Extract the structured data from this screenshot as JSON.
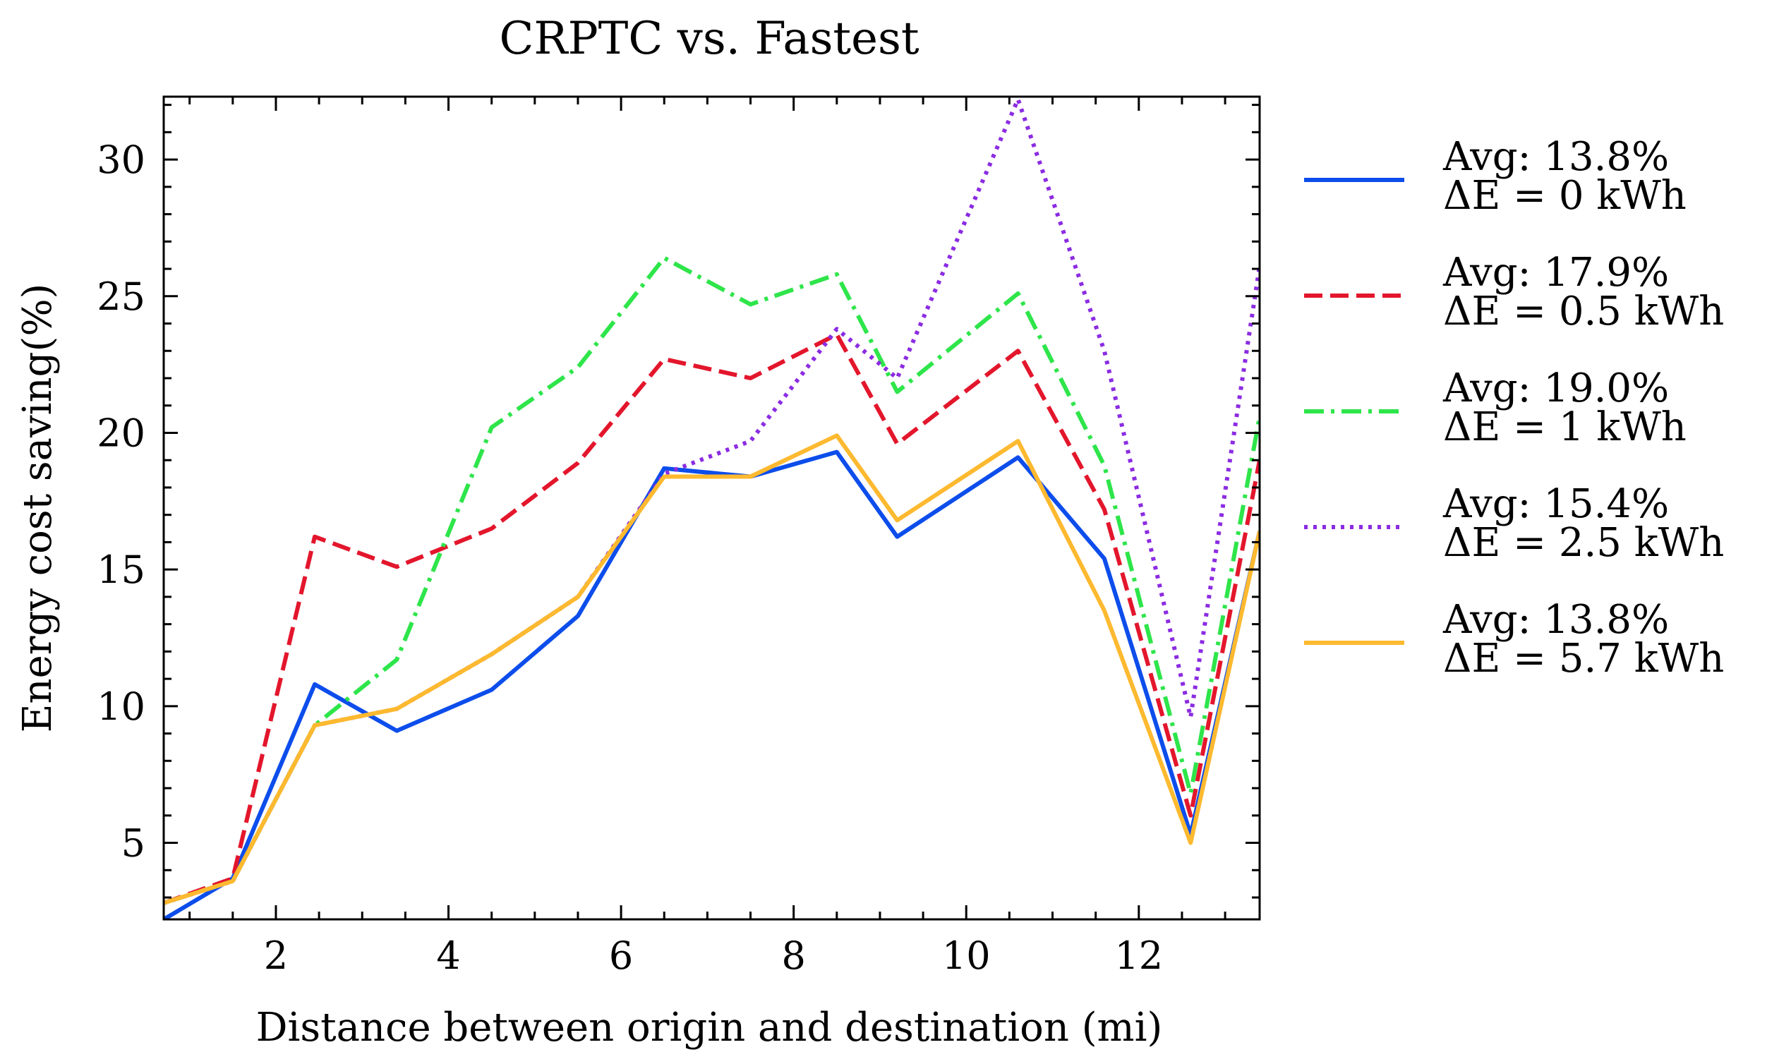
{
  "chart_data": {
    "type": "line",
    "title": "CRPTC vs. Fastest",
    "xlabel": "Distance between origin and destination (mi)",
    "ylabel": "Energy cost saving(%)",
    "xlim": [
      0.7,
      13.4
    ],
    "ylim": [
      2.2,
      32.3
    ],
    "xticks": [
      2,
      4,
      6,
      8,
      10,
      12
    ],
    "yticks": [
      5,
      10,
      15,
      20,
      25,
      30
    ],
    "grid": false,
    "legend_position": "outside-right",
    "x": [
      0.7,
      1.5,
      2.45,
      3.4,
      4.5,
      5.5,
      6.5,
      7.5,
      8.5,
      9.2,
      10.6,
      11.6,
      12.6,
      13.4
    ],
    "series": [
      {
        "name": "ΔE = 0 kWh",
        "avg_label": "Avg: 13.8%",
        "de_label": "ΔE = 0 kWh",
        "color": "#0C4DEB",
        "dash": "solid",
        "values": [
          2.2,
          3.7,
          10.8,
          9.1,
          10.6,
          13.3,
          18.7,
          18.4,
          19.3,
          16.2,
          19.1,
          15.4,
          5.3,
          16.4
        ]
      },
      {
        "name": "ΔE = 0.5 kWh",
        "avg_label": "Avg: 17.9%",
        "de_label": "ΔE = 0.5 kWh",
        "color": "#E3162C",
        "dash": "dashed",
        "values": [
          2.8,
          3.7,
          16.2,
          15.1,
          16.5,
          18.9,
          22.7,
          22.0,
          23.6,
          19.6,
          23.0,
          17.2,
          6.0,
          19.0
        ]
      },
      {
        "name": "ΔE = 1 kWh",
        "avg_label": "Avg: 19.0%",
        "de_label": "ΔE = 1 kWh",
        "color": "#2EE54A",
        "dash": "dashdot",
        "values": [
          2.8,
          3.6,
          9.3,
          11.7,
          20.2,
          22.4,
          26.4,
          24.7,
          25.8,
          21.5,
          25.1,
          18.8,
          6.8,
          20.6
        ]
      },
      {
        "name": "ΔE = 2.5 kWh",
        "avg_label": "Avg: 15.4%",
        "de_label": "ΔE = 2.5 kWh",
        "color": "#8B2BE2",
        "dash": "dotted",
        "values": [
          2.8,
          3.6,
          9.3,
          9.9,
          11.9,
          14.0,
          18.5,
          19.7,
          23.8,
          22.0,
          32.2,
          23.0,
          9.6,
          26.1
        ]
      },
      {
        "name": "ΔE = 5.7 kWh",
        "avg_label": "Avg: 13.8%",
        "de_label": "ΔE = 5.7 kWh",
        "color": "#FDB92F",
        "dash": "solid",
        "values": [
          2.8,
          3.6,
          9.3,
          9.9,
          11.9,
          14.0,
          18.4,
          18.4,
          19.9,
          16.8,
          19.7,
          13.5,
          5.0,
          16.4
        ]
      }
    ]
  }
}
